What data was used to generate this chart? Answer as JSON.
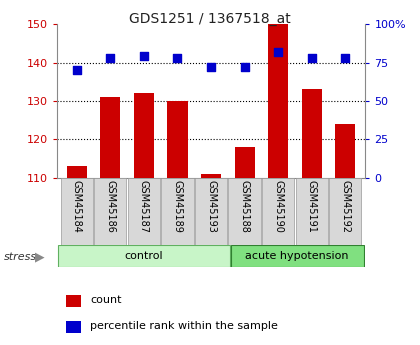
{
  "title": "GDS1251 / 1367518_at",
  "samples": [
    "GSM45184",
    "GSM45186",
    "GSM45187",
    "GSM45189",
    "GSM45193",
    "GSM45188",
    "GSM45190",
    "GSM45191",
    "GSM45192"
  ],
  "counts": [
    113,
    131,
    132,
    130,
    111,
    118,
    150,
    133,
    124
  ],
  "percentiles": [
    70,
    78,
    79,
    78,
    72,
    72,
    82,
    78,
    78
  ],
  "group_labels": [
    "control",
    "acute hypotension"
  ],
  "ctrl_color": "#c8f5c8",
  "hyp_color": "#80e080",
  "left_ylim": [
    110,
    150
  ],
  "right_ylim": [
    0,
    100
  ],
  "left_yticks": [
    110,
    120,
    130,
    140,
    150
  ],
  "right_yticks": [
    0,
    25,
    50,
    75,
    100
  ],
  "right_yticklabels": [
    "0",
    "25",
    "50",
    "75",
    "100%"
  ],
  "bar_color": "#cc0000",
  "dot_color": "#0000cc",
  "left_axis_color": "#cc0000",
  "right_axis_color": "#0000cc",
  "stress_label": "stress",
  "legend_count": "count",
  "legend_percentile": "percentile rank within the sample",
  "bar_width": 0.6,
  "dot_size": 28,
  "figsize": [
    4.2,
    3.45
  ],
  "dpi": 100
}
